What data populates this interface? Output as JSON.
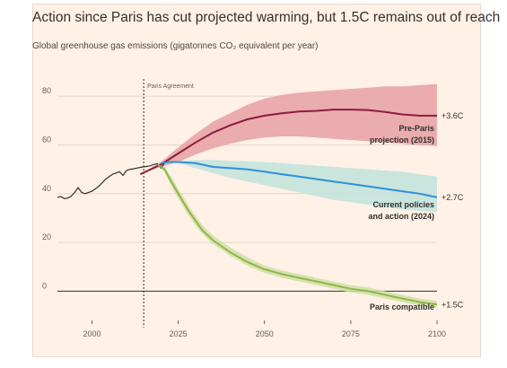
{
  "chart_data": {
    "type": "line",
    "title": "Action since Paris has cut projected warming, but 1.5C remains out of reach",
    "subtitle": "Global greenhouse gas emissions (gigatonnes CO₂ equivalent per year)",
    "xlim": [
      1990,
      2100
    ],
    "ylim": [
      -12,
      90
    ],
    "x_ticks": [
      2000,
      2025,
      2050,
      2075,
      2100
    ],
    "y_ticks": [
      0,
      20,
      40,
      60,
      80
    ],
    "grid": true,
    "vline": {
      "x": 2015,
      "label": "Paris Agreement"
    },
    "historical": {
      "color": "#33302e",
      "points": [
        [
          1990,
          38.5
        ],
        [
          1991,
          38.8
        ],
        [
          1992,
          38
        ],
        [
          1993,
          38.2
        ],
        [
          1994,
          39
        ],
        [
          1995,
          40.5
        ],
        [
          1996,
          42.5
        ],
        [
          1997,
          40.5
        ],
        [
          1998,
          40
        ],
        [
          1999,
          40.5
        ],
        [
          2000,
          41
        ],
        [
          2001,
          42
        ],
        [
          2002,
          43
        ],
        [
          2003,
          44.5
        ],
        [
          2004,
          46
        ],
        [
          2005,
          47
        ],
        [
          2006,
          48
        ],
        [
          2007,
          48.5
        ],
        [
          2008,
          49
        ],
        [
          2009,
          47.5
        ],
        [
          2010,
          49.5
        ],
        [
          2011,
          50
        ],
        [
          2012,
          50.2
        ],
        [
          2013,
          50.5
        ],
        [
          2014,
          50.8
        ],
        [
          2015,
          51
        ],
        [
          2016,
          51.2
        ],
        [
          2017,
          51.5
        ],
        [
          2018,
          52
        ],
        [
          2019,
          52.3
        ],
        [
          2020,
          50.5
        ],
        [
          2021,
          52.5
        ]
      ]
    },
    "series": [
      {
        "name": "Pre-Paris projection (2015)",
        "label_lines": [
          "Pre-Paris",
          "projection (2015)"
        ],
        "end_label": "+3.6C",
        "color": "#8b1d3f",
        "band_color": "#e8a0a4",
        "points": [
          [
            2014,
            48
          ],
          [
            2020,
            52
          ],
          [
            2025,
            56.5
          ],
          [
            2030,
            61
          ],
          [
            2035,
            65
          ],
          [
            2040,
            68
          ],
          [
            2045,
            70.5
          ],
          [
            2050,
            72
          ],
          [
            2055,
            73
          ],
          [
            2060,
            73.7
          ],
          [
            2065,
            74
          ],
          [
            2070,
            74.5
          ],
          [
            2075,
            74.5
          ],
          [
            2080,
            74.3
          ],
          [
            2085,
            73.5
          ],
          [
            2090,
            72.5
          ],
          [
            2095,
            72
          ],
          [
            2100,
            72
          ]
        ],
        "upper": [
          [
            2014,
            48
          ],
          [
            2020,
            53
          ],
          [
            2025,
            59
          ],
          [
            2030,
            64.5
          ],
          [
            2035,
            69.5
          ],
          [
            2040,
            73
          ],
          [
            2045,
            76.5
          ],
          [
            2050,
            79
          ],
          [
            2055,
            80.5
          ],
          [
            2060,
            81.5
          ],
          [
            2065,
            82
          ],
          [
            2070,
            82.5
          ],
          [
            2075,
            83
          ],
          [
            2080,
            83.5
          ],
          [
            2085,
            84
          ],
          [
            2090,
            84
          ],
          [
            2095,
            84.5
          ],
          [
            2100,
            85
          ]
        ],
        "lower": [
          [
            2014,
            48
          ],
          [
            2020,
            51
          ],
          [
            2025,
            53
          ],
          [
            2030,
            56
          ],
          [
            2035,
            58.5
          ],
          [
            2040,
            60.5
          ],
          [
            2045,
            62
          ],
          [
            2050,
            63
          ],
          [
            2055,
            63.5
          ],
          [
            2060,
            63.5
          ],
          [
            2065,
            63
          ],
          [
            2070,
            62.5
          ],
          [
            2075,
            62
          ],
          [
            2080,
            61.5
          ],
          [
            2085,
            61
          ],
          [
            2090,
            60.5
          ],
          [
            2095,
            60
          ],
          [
            2100,
            59.5
          ]
        ]
      },
      {
        "name": "Current policies and action (2024)",
        "label_lines": [
          "Current policies",
          "and action (2024)"
        ],
        "end_label": "+2.7C",
        "color": "#2f8fd8",
        "band_color": "#bfe3dd",
        "points": [
          [
            2020,
            52.5
          ],
          [
            2022,
            53
          ],
          [
            2025,
            53
          ],
          [
            2030,
            52.5
          ],
          [
            2035,
            51
          ],
          [
            2040,
            50.5
          ],
          [
            2045,
            50
          ],
          [
            2050,
            49
          ],
          [
            2055,
            48
          ],
          [
            2060,
            47
          ],
          [
            2065,
            46
          ],
          [
            2070,
            45
          ],
          [
            2075,
            44
          ],
          [
            2080,
            43
          ],
          [
            2085,
            42
          ],
          [
            2090,
            41
          ],
          [
            2095,
            40
          ],
          [
            2100,
            38.5
          ]
        ],
        "upper": [
          [
            2020,
            52.5
          ],
          [
            2022,
            53.2
          ],
          [
            2025,
            53.5
          ],
          [
            2030,
            53.8
          ],
          [
            2035,
            53.8
          ],
          [
            2040,
            53.5
          ],
          [
            2045,
            53.2
          ],
          [
            2050,
            53
          ],
          [
            2055,
            52.5
          ],
          [
            2060,
            52
          ],
          [
            2065,
            51.5
          ],
          [
            2070,
            51
          ],
          [
            2075,
            50.5
          ],
          [
            2080,
            50
          ],
          [
            2085,
            49.5
          ],
          [
            2090,
            49
          ],
          [
            2095,
            48
          ],
          [
            2100,
            47
          ]
        ],
        "lower": [
          [
            2020,
            52.5
          ],
          [
            2022,
            52.8
          ],
          [
            2025,
            52.5
          ],
          [
            2030,
            50.5
          ],
          [
            2035,
            48.5
          ],
          [
            2040,
            46.5
          ],
          [
            2045,
            45
          ],
          [
            2050,
            43.5
          ],
          [
            2055,
            42
          ],
          [
            2060,
            40.5
          ],
          [
            2065,
            39
          ],
          [
            2070,
            37.5
          ],
          [
            2075,
            36.5
          ],
          [
            2080,
            35.5
          ],
          [
            2085,
            34.5
          ],
          [
            2090,
            33.5
          ],
          [
            2095,
            33
          ],
          [
            2100,
            32.5
          ]
        ]
      },
      {
        "name": "Paris compatible",
        "label_lines": [
          "Paris compatible"
        ],
        "end_label": "+1.5C",
        "color": "#93b548",
        "band_color": "#cfe0a8",
        "points": [
          [
            2019,
            52
          ],
          [
            2021,
            50
          ],
          [
            2023,
            45
          ],
          [
            2025,
            40
          ],
          [
            2028,
            33
          ],
          [
            2030,
            29
          ],
          [
            2032,
            25
          ],
          [
            2035,
            21
          ],
          [
            2040,
            16
          ],
          [
            2045,
            12
          ],
          [
            2050,
            9
          ],
          [
            2055,
            7
          ],
          [
            2060,
            5.5
          ],
          [
            2065,
            4
          ],
          [
            2070,
            2.5
          ],
          [
            2075,
            1
          ],
          [
            2080,
            0
          ],
          [
            2085,
            -1.5
          ],
          [
            2090,
            -3
          ],
          [
            2095,
            -4.5
          ],
          [
            2100,
            -5.5
          ]
        ],
        "upper": [
          [
            2019,
            52
          ],
          [
            2021,
            51
          ],
          [
            2023,
            47
          ],
          [
            2025,
            42
          ],
          [
            2028,
            35
          ],
          [
            2030,
            31
          ],
          [
            2032,
            27
          ],
          [
            2035,
            23
          ],
          [
            2040,
            18
          ],
          [
            2045,
            14
          ],
          [
            2050,
            10.5
          ],
          [
            2055,
            8.5
          ],
          [
            2060,
            7
          ],
          [
            2065,
            5.5
          ],
          [
            2070,
            4
          ],
          [
            2075,
            2.5
          ],
          [
            2080,
            1.5
          ],
          [
            2085,
            0
          ],
          [
            2090,
            -1.5
          ],
          [
            2095,
            -3
          ],
          [
            2100,
            -4
          ]
        ],
        "lower": [
          [
            2019,
            52
          ],
          [
            2021,
            49
          ],
          [
            2023,
            43
          ],
          [
            2025,
            38
          ],
          [
            2028,
            31
          ],
          [
            2030,
            27
          ],
          [
            2032,
            23.5
          ],
          [
            2035,
            19.5
          ],
          [
            2040,
            14.5
          ],
          [
            2045,
            10.5
          ],
          [
            2050,
            7.5
          ],
          [
            2055,
            5.5
          ],
          [
            2060,
            4
          ],
          [
            2065,
            2.5
          ],
          [
            2070,
            1
          ],
          [
            2075,
            -0.5
          ],
          [
            2080,
            -1.5
          ],
          [
            2085,
            -3
          ],
          [
            2090,
            -4.5
          ],
          [
            2095,
            -6
          ],
          [
            2100,
            -7
          ]
        ]
      }
    ]
  }
}
